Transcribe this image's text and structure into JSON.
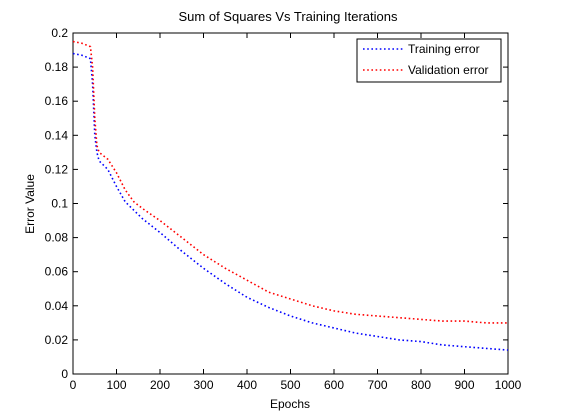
{
  "chart_data": {
    "type": "line",
    "title": "Sum of Squares Vs Training Iterations",
    "xlabel": "Epochs",
    "ylabel": "Error Value",
    "xlim": [
      0,
      1000
    ],
    "ylim": [
      0,
      0.2
    ],
    "xticks": [
      0,
      100,
      200,
      300,
      400,
      500,
      600,
      700,
      800,
      900,
      1000
    ],
    "xtick_labels": [
      "0",
      "100",
      "200",
      "300",
      "400",
      "500",
      "600",
      "700",
      "800",
      "900",
      "1000"
    ],
    "yticks": [
      0,
      0.02,
      0.04,
      0.06,
      0.08,
      0.1,
      0.12,
      0.14,
      0.16,
      0.18,
      0.2
    ],
    "ytick_labels": [
      "0",
      "0.02",
      "0.04",
      "0.06",
      "0.08",
      "0.1",
      "0.12",
      "0.14",
      "0.16",
      "0.18",
      "0.2"
    ],
    "grid": false,
    "legend_position": "top-right",
    "series": [
      {
        "name": "Training error",
        "color": "#0000ff",
        "x": [
          0,
          20,
          40,
          45,
          50,
          55,
          60,
          80,
          100,
          120,
          140,
          160,
          200,
          250,
          300,
          350,
          400,
          450,
          500,
          550,
          600,
          650,
          700,
          750,
          800,
          850,
          900,
          950,
          1000
        ],
        "y": [
          0.188,
          0.187,
          0.185,
          0.17,
          0.14,
          0.13,
          0.125,
          0.12,
          0.11,
          0.101,
          0.096,
          0.091,
          0.083,
          0.072,
          0.062,
          0.053,
          0.045,
          0.039,
          0.034,
          0.03,
          0.027,
          0.024,
          0.022,
          0.02,
          0.019,
          0.017,
          0.016,
          0.015,
          0.014
        ]
      },
      {
        "name": "Validation error",
        "color": "#ff0000",
        "x": [
          0,
          20,
          40,
          45,
          50,
          55,
          60,
          80,
          100,
          120,
          140,
          160,
          200,
          250,
          300,
          350,
          400,
          450,
          500,
          550,
          600,
          650,
          700,
          750,
          800,
          850,
          900,
          950,
          1000
        ],
        "y": [
          0.195,
          0.194,
          0.192,
          0.18,
          0.15,
          0.134,
          0.13,
          0.126,
          0.118,
          0.108,
          0.101,
          0.097,
          0.09,
          0.08,
          0.07,
          0.062,
          0.055,
          0.048,
          0.044,
          0.04,
          0.037,
          0.035,
          0.034,
          0.033,
          0.032,
          0.031,
          0.031,
          0.03,
          0.03
        ]
      }
    ]
  }
}
